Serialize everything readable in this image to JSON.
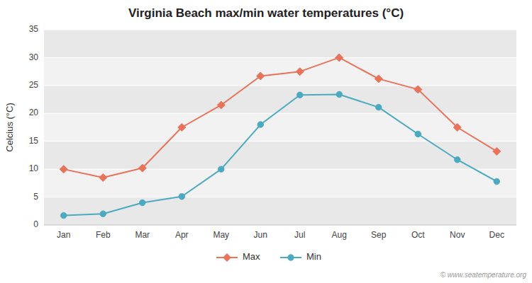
{
  "chart_data": {
    "type": "line",
    "title": "Virginia Beach max/min water temperatures (°C)",
    "ylabel": "Celcius (°C)",
    "categories": [
      "Jan",
      "Feb",
      "Mar",
      "Apr",
      "May",
      "Jun",
      "Jul",
      "Aug",
      "Sep",
      "Oct",
      "Nov",
      "Dec"
    ],
    "series": [
      {
        "name": "Max",
        "color": "#E8735A",
        "marker": "diamond",
        "values": [
          10.0,
          8.5,
          10.2,
          17.5,
          21.5,
          26.7,
          27.5,
          30.0,
          26.2,
          24.3,
          17.5,
          13.2
        ]
      },
      {
        "name": "Min",
        "color": "#4BAABF",
        "marker": "circle",
        "values": [
          1.7,
          2.0,
          4.0,
          5.1,
          10.0,
          18.0,
          23.3,
          23.4,
          21.1,
          16.3,
          11.7,
          7.8
        ]
      }
    ],
    "ylim": [
      0,
      35
    ],
    "yticks": [
      0,
      5,
      10,
      15,
      20,
      25,
      30,
      35
    ],
    "grid": true,
    "legend": "bottom",
    "annotations": [
      "© www.seatemperature.org"
    ]
  }
}
